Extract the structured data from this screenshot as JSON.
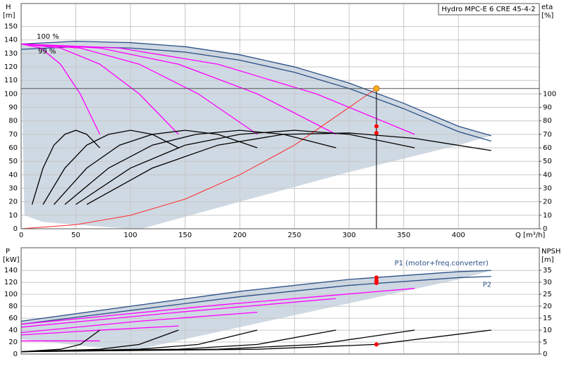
{
  "chart_data": [
    {
      "type": "line",
      "title": "Hydro MPC-E 6 CRE 45-4-2",
      "y_label": "H",
      "y_unit": "[m]",
      "y2_label": "eta",
      "y2_unit": "[%]",
      "x_label": "Q [m³/h]",
      "xlim": [
        0,
        474
      ],
      "xticks": [
        0,
        50,
        100,
        150,
        200,
        250,
        300,
        350,
        400
      ],
      "ylim": [
        0,
        167
      ],
      "yticks": [
        0,
        10,
        20,
        30,
        40,
        50,
        60,
        70,
        80,
        90,
        100,
        110,
        120,
        130,
        140,
        150
      ],
      "y2lim": [
        0,
        167
      ],
      "y2ticks": [
        0,
        10,
        20,
        30,
        40,
        50,
        60,
        70,
        80,
        90,
        100
      ],
      "grid": true,
      "annotations": [
        "100 %",
        "99 %"
      ],
      "envelope": {
        "color": "#cfd9e3",
        "x": [
          430,
          400,
          300,
          200,
          110,
          100,
          50,
          20,
          3
        ],
        "values": [
          69,
          62,
          42,
          20,
          0,
          0,
          3,
          5,
          10
        ]
      },
      "series": [
        {
          "color": "#2b4f86",
          "x": [
            0,
            50,
            100,
            150,
            200,
            250,
            300,
            350,
            400,
            430
          ],
          "values": [
            137,
            139,
            138,
            135,
            129,
            120,
            108,
            93,
            76,
            69
          ]
        },
        {
          "color": "#2b4f86",
          "x": [
            0,
            50,
            100,
            150,
            200,
            250,
            300,
            350,
            400,
            430
          ],
          "values": [
            133,
            135,
            134,
            131,
            125,
            116,
            104,
            89,
            72,
            65
          ]
        },
        {
          "color": "#ff00ff",
          "x": [
            0,
            18,
            36,
            54,
            72
          ],
          "values": [
            137,
            134,
            122,
            100,
            70
          ]
        },
        {
          "color": "#ff00ff",
          "x": [
            0,
            36,
            72,
            108,
            144
          ],
          "values": [
            137,
            134,
            122,
            100,
            70
          ]
        },
        {
          "color": "#ff00ff",
          "x": [
            0,
            54,
            108,
            162,
            216
          ],
          "values": [
            137,
            134,
            122,
            100,
            70
          ]
        },
        {
          "color": "#ff00ff",
          "x": [
            0,
            72,
            144,
            216,
            288
          ],
          "values": [
            137,
            134,
            122,
            100,
            70
          ]
        },
        {
          "color": "#ff00ff",
          "x": [
            0,
            90,
            180,
            270,
            360
          ],
          "values": [
            137,
            134,
            122,
            100,
            70
          ]
        },
        {
          "color": "#ff2a2a",
          "x": [
            0,
            50,
            100,
            150,
            200,
            250,
            300,
            325
          ],
          "values": [
            0,
            3,
            10,
            22,
            40,
            62,
            90,
            104
          ]
        },
        {
          "color": "#000000",
          "axis": "y2",
          "x": [
            10,
            20,
            30,
            40,
            50,
            60,
            72
          ],
          "values": [
            18,
            45,
            62,
            70,
            73,
            70,
            60
          ]
        },
        {
          "color": "#000000",
          "axis": "y2",
          "x": [
            20,
            40,
            60,
            80,
            100,
            120,
            144
          ],
          "values": [
            18,
            45,
            62,
            70,
            73,
            70,
            60
          ]
        },
        {
          "color": "#000000",
          "axis": "y2",
          "x": [
            30,
            60,
            90,
            120,
            150,
            180,
            216
          ],
          "values": [
            18,
            45,
            62,
            70,
            73,
            70,
            60
          ]
        },
        {
          "color": "#000000",
          "axis": "y2",
          "x": [
            40,
            80,
            120,
            160,
            200,
            240,
            288
          ],
          "values": [
            18,
            45,
            62,
            70,
            73,
            70,
            60
          ]
        },
        {
          "color": "#000000",
          "axis": "y2",
          "x": [
            50,
            100,
            150,
            200,
            250,
            300,
            360
          ],
          "values": [
            18,
            45,
            62,
            70,
            73,
            70,
            60
          ]
        },
        {
          "color": "#000000",
          "axis": "y2",
          "x": [
            60,
            120,
            180,
            240,
            300,
            360,
            430
          ],
          "values": [
            18,
            45,
            62,
            70,
            71,
            67,
            58
          ]
        }
      ],
      "duty": {
        "x": 325,
        "y": 104,
        "eta": [
          76,
          71
        ]
      }
    },
    {
      "type": "line",
      "y_label": "P",
      "y_unit": "[kW]",
      "y2_label": "NPSH",
      "y2_unit": "[m]",
      "xlim": [
        0,
        474
      ],
      "xticks": [
        0,
        50,
        100,
        150,
        200,
        250,
        300,
        350,
        400
      ],
      "ylim": [
        0,
        178
      ],
      "yticks": [
        0,
        20,
        40,
        60,
        80,
        100,
        120,
        140
      ],
      "y2lim": [
        0,
        44.4
      ],
      "y2ticks": [
        0,
        5,
        10,
        15,
        20,
        25,
        30,
        35
      ],
      "grid": true,
      "envelope": {
        "color": "#cfd9e3",
        "x": [
          430,
          400,
          300,
          200,
          100,
          0
        ],
        "values": [
          140,
          125,
          85,
          45,
          5,
          25
        ]
      },
      "series": [
        {
          "name": "P1 (motor+freq.converter)",
          "color": "#2b4f86",
          "x": [
            0,
            100,
            200,
            300,
            400,
            430
          ],
          "values": [
            55,
            80,
            105,
            125,
            138,
            140
          ]
        },
        {
          "name": "P2",
          "color": "#2b4f86",
          "x": [
            0,
            100,
            200,
            300,
            400,
            430
          ],
          "values": [
            50,
            73,
            96,
            115,
            128,
            130
          ]
        },
        {
          "color": "#ff00ff",
          "x": [
            0,
            72
          ],
          "values": [
            22,
            22
          ]
        },
        {
          "color": "#ff00ff",
          "x": [
            0,
            72,
            144
          ],
          "values": [
            32,
            40,
            47
          ]
        },
        {
          "color": "#ff00ff",
          "x": [
            0,
            108,
            216
          ],
          "values": [
            36,
            55,
            70
          ]
        },
        {
          "color": "#ff00ff",
          "x": [
            0,
            144,
            288
          ],
          "values": [
            45,
            70,
            93
          ]
        },
        {
          "color": "#ff00ff",
          "x": [
            0,
            180,
            360
          ],
          "values": [
            50,
            82,
            110
          ]
        },
        {
          "color": "#000000",
          "axis": "y2",
          "x": [
            0,
            36,
            54,
            72
          ],
          "values": [
            1,
            2,
            4,
            10
          ]
        },
        {
          "color": "#000000",
          "axis": "y2",
          "x": [
            0,
            72,
            108,
            144
          ],
          "values": [
            1,
            2,
            4,
            10
          ]
        },
        {
          "color": "#000000",
          "axis": "y2",
          "x": [
            0,
            108,
            162,
            216
          ],
          "values": [
            1,
            2,
            4,
            10
          ]
        },
        {
          "color": "#000000",
          "axis": "y2",
          "x": [
            0,
            144,
            216,
            288
          ],
          "values": [
            1,
            2,
            4,
            10
          ]
        },
        {
          "color": "#000000",
          "axis": "y2",
          "x": [
            0,
            180,
            270,
            360
          ],
          "values": [
            1,
            2,
            4,
            10
          ]
        },
        {
          "color": "#000000",
          "axis": "y2",
          "x": [
            0,
            216,
            324,
            430
          ],
          "values": [
            1,
            2,
            4,
            10
          ]
        }
      ],
      "duty": {
        "x": 325,
        "values": [
          128,
          123,
          119
        ],
        "npsh": 4
      }
    }
  ]
}
